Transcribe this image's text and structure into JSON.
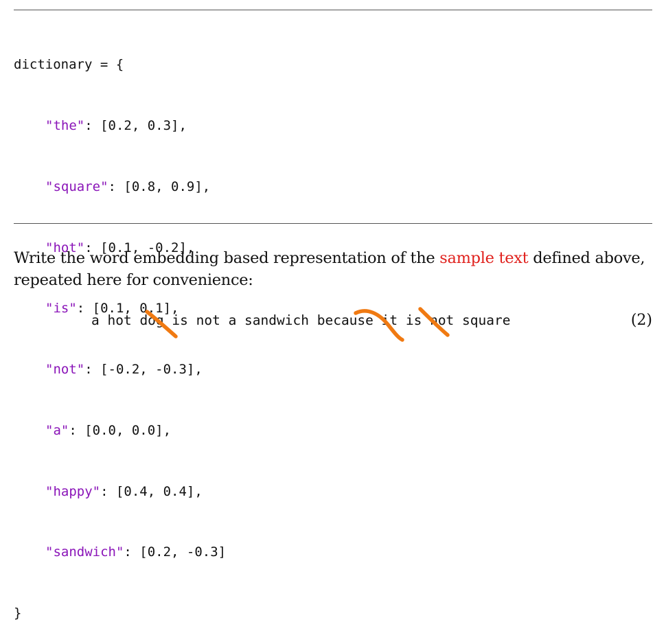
{
  "code": {
    "open": "dictionary = {",
    "entries": [
      {
        "key": "\"the\"",
        "value": ": [0.2, 0.3],"
      },
      {
        "key": "\"square\"",
        "value": ": [0.8, 0.9],"
      },
      {
        "key": "\"hot\"",
        "value": ": [0.1, -0.2],"
      },
      {
        "key": "\"is\"",
        "value": ": [0.1, 0.1],"
      },
      {
        "key": "\"not\"",
        "value": ": [-0.2, -0.3],"
      },
      {
        "key": "\"a\"",
        "value": ": [0.0, 0.0],"
      },
      {
        "key": "\"happy\"",
        "value": ": [0.4, 0.4],"
      },
      {
        "key": "\"sandwich\"",
        "value": ": [0.2, -0.3]"
      }
    ],
    "close": "}"
  },
  "paragraph": {
    "before": "Write the word embedding based representation of the ",
    "highlight": "sample text",
    "after": " defined above, repeated here for convenience:"
  },
  "equation": {
    "text": "a hot dog is not a sandwich because it is not square",
    "number": "(2)",
    "crossed_out_words": [
      "dog",
      "because",
      "it"
    ]
  },
  "colors": {
    "key_string": "#8a14b8",
    "highlight": "#e0201c",
    "strike_mark": "#f07a12",
    "rule": "#555555"
  }
}
